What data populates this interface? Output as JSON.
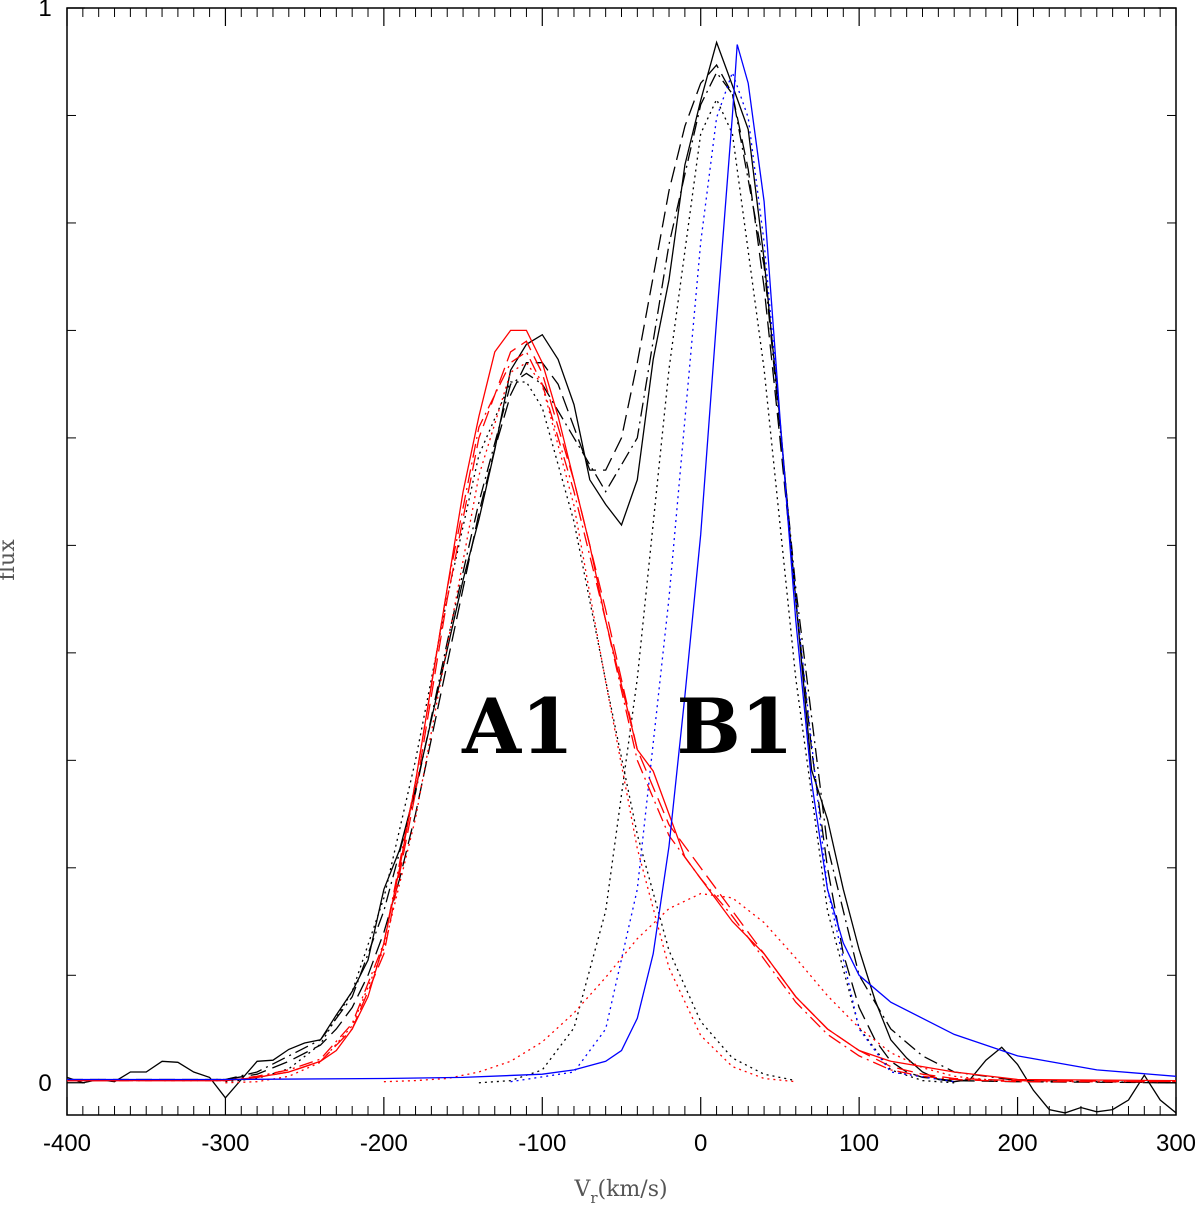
{
  "chart_data": {
    "type": "line",
    "xlabel": {
      "base": "V",
      "subscript": "r",
      "rest": "(km/s)"
    },
    "ylabel": "flux",
    "xlim": [
      -400,
      300
    ],
    "ylim": [
      -0.03,
      1
    ],
    "xticks": [
      -400,
      -300,
      -200,
      -100,
      0,
      100,
      200,
      300
    ],
    "yticks": [
      0,
      1
    ],
    "xminorticks": [
      -390,
      -380,
      -370,
      -360,
      -350,
      -340,
      -330,
      -320,
      -310,
      -290,
      -280,
      -270,
      -260,
      -250,
      -240,
      -230,
      -220,
      -210,
      -190,
      -180,
      -170,
      -160,
      -150,
      -140,
      -130,
      -120,
      -110,
      -90,
      -80,
      -70,
      -60,
      -50,
      -40,
      -30,
      -20,
      -10,
      10,
      20,
      30,
      40,
      50,
      60,
      70,
      80,
      90,
      110,
      120,
      130,
      140,
      150,
      160,
      170,
      180,
      190,
      210,
      220,
      230,
      240,
      250,
      260,
      270,
      280,
      290
    ],
    "yminorticks": [
      0.1,
      0.2,
      0.3,
      0.4,
      0.5,
      0.6,
      0.7,
      0.8,
      0.9
    ],
    "annotations": [
      "A1",
      "B1"
    ],
    "series": [
      {
        "color": "#000000",
        "style": "solid",
        "x": [
          -400,
          -390,
          -380,
          -370,
          -360,
          -350,
          -340,
          -330,
          -320,
          -310,
          -300,
          -290,
          -280,
          -270,
          -260,
          -250,
          -240,
          -230,
          -220,
          -210,
          -200,
          -190,
          -180,
          -170,
          -160,
          -150,
          -140,
          -130,
          -120,
          -110,
          -100,
          -90,
          -80,
          -70,
          -60,
          -50,
          -40,
          -30,
          -20,
          -10,
          0,
          10,
          20,
          30,
          40,
          50,
          60,
          70,
          80,
          90,
          100,
          110,
          120,
          130,
          140,
          150,
          160,
          170,
          180,
          190,
          200,
          210,
          220,
          230,
          240,
          250,
          260,
          270,
          280,
          290,
          300
        ],
        "values": [
          0.005,
          0,
          0.003,
          0.001,
          0.01,
          0.01,
          0.02,
          0.019,
          0.01,
          0.005,
          -0.014,
          0.003,
          0.02,
          0.021,
          0.031,
          0.037,
          0.04,
          0.063,
          0.085,
          0.114,
          0.18,
          0.217,
          0.273,
          0.338,
          0.403,
          0.468,
          0.524,
          0.589,
          0.663,
          0.687,
          0.696,
          0.673,
          0.631,
          0.561,
          0.538,
          0.519,
          0.561,
          0.673,
          0.747,
          0.854,
          0.914,
          0.968,
          0.928,
          0.887,
          0.766,
          0.617,
          0.449,
          0.291,
          0.245,
          0.18,
          0.124,
          0.077,
          0.04,
          0.023,
          0.01,
          0.003,
          0.001,
          0.003,
          0.021,
          0.033,
          0.017,
          -0.007,
          -0.025,
          -0.028,
          -0.023,
          -0.027,
          -0.025,
          -0.016,
          0.007,
          -0.016,
          -0.028
        ]
      },
      {
        "color": "#000000",
        "style": "dashed",
        "x": [
          -400,
          -300,
          -280,
          -260,
          -240,
          -230,
          -220,
          -210,
          -200,
          -190,
          -180,
          -170,
          -160,
          -150,
          -140,
          -130,
          -120,
          -110,
          -100,
          -90,
          -80,
          -70,
          -60,
          -50,
          -40,
          -30,
          -20,
          -10,
          0,
          10,
          20,
          30,
          40,
          50,
          60,
          70,
          80,
          90,
          100,
          110,
          120,
          130,
          140,
          160,
          200,
          300
        ],
        "values": [
          0.003,
          0.003,
          0.008,
          0.02,
          0.035,
          0.05,
          0.07,
          0.1,
          0.14,
          0.19,
          0.25,
          0.32,
          0.39,
          0.46,
          0.53,
          0.59,
          0.64,
          0.67,
          0.67,
          0.65,
          0.61,
          0.57,
          0.57,
          0.6,
          0.67,
          0.75,
          0.83,
          0.89,
          0.93,
          0.947,
          0.92,
          0.85,
          0.74,
          0.6,
          0.45,
          0.31,
          0.2,
          0.12,
          0.07,
          0.04,
          0.02,
          0.01,
          0.005,
          0.002,
          0.001,
          0
        ]
      },
      {
        "color": "#000000",
        "style": "dashdot",
        "x": [
          -400,
          -300,
          -280,
          -260,
          -240,
          -220,
          -200,
          -180,
          -160,
          -140,
          -120,
          -110,
          -100,
          -80,
          -60,
          -40,
          -20,
          0,
          10,
          20,
          40,
          60,
          80,
          100,
          120,
          140,
          160,
          200,
          300
        ],
        "values": [
          0.002,
          0.003,
          0.01,
          0.025,
          0.04,
          0.08,
          0.16,
          0.27,
          0.41,
          0.54,
          0.65,
          0.66,
          0.65,
          0.6,
          0.55,
          0.6,
          0.78,
          0.91,
          0.94,
          0.92,
          0.76,
          0.46,
          0.22,
          0.1,
          0.05,
          0.025,
          0.01,
          0.002,
          0
        ]
      },
      {
        "color": "#000000",
        "style": "dotted",
        "x": [
          -300,
          -280,
          -260,
          -240,
          -220,
          -200,
          -180,
          -160,
          -140,
          -120,
          -110,
          -100,
          -80,
          -60,
          -40,
          -20,
          0,
          20,
          40,
          60
        ],
        "values": [
          0.001,
          0.004,
          0.013,
          0.036,
          0.085,
          0.172,
          0.3,
          0.451,
          0.584,
          0.652,
          0.652,
          0.628,
          0.522,
          0.374,
          0.231,
          0.123,
          0.057,
          0.023,
          0.008,
          0.002
        ]
      },
      {
        "color": "#000000",
        "style": "dotted",
        "x": [
          -140,
          -120,
          -100,
          -80,
          -60,
          -40,
          -20,
          0,
          10,
          20,
          40,
          60,
          80,
          100,
          120,
          140,
          160
        ],
        "values": [
          0,
          0.002,
          0.012,
          0.051,
          0.16,
          0.376,
          0.664,
          0.883,
          0.915,
          0.883,
          0.664,
          0.376,
          0.16,
          0.051,
          0.012,
          0.002,
          0
        ]
      },
      {
        "color": "#ff0000",
        "style": "solid",
        "x": [
          -400,
          -300,
          -280,
          -260,
          -240,
          -230,
          -220,
          -210,
          -200,
          -190,
          -180,
          -170,
          -160,
          -150,
          -140,
          -130,
          -120,
          -110,
          -100,
          -90,
          -80,
          -70,
          -60,
          -50,
          -40,
          -30,
          -20,
          -10,
          0,
          20,
          40,
          60,
          80,
          100,
          120,
          140,
          160,
          200,
          300
        ],
        "values": [
          0.002,
          0.002,
          0.005,
          0.01,
          0.02,
          0.03,
          0.05,
          0.08,
          0.13,
          0.2,
          0.28,
          0.37,
          0.46,
          0.55,
          0.62,
          0.68,
          0.7,
          0.7,
          0.67,
          0.62,
          0.56,
          0.5,
          0.43,
          0.37,
          0.31,
          0.29,
          0.25,
          0.21,
          0.19,
          0.15,
          0.12,
          0.08,
          0.05,
          0.03,
          0.02,
          0.015,
          0.01,
          0.003,
          0.002
        ]
      },
      {
        "color": "#ff0000",
        "style": "dashed",
        "x": [
          -400,
          -300,
          -280,
          -260,
          -240,
          -220,
          -200,
          -180,
          -160,
          -140,
          -120,
          -110,
          -100,
          -80,
          -60,
          -40,
          -20,
          0,
          20,
          40,
          60,
          80,
          100,
          120,
          140,
          160,
          200,
          300
        ],
        "values": [
          0.002,
          0.002,
          0.005,
          0.01,
          0.02,
          0.05,
          0.12,
          0.27,
          0.45,
          0.6,
          0.68,
          0.69,
          0.66,
          0.56,
          0.44,
          0.31,
          0.24,
          0.2,
          0.16,
          0.12,
          0.08,
          0.05,
          0.03,
          0.015,
          0.008,
          0.004,
          0.002,
          0.001
        ]
      },
      {
        "color": "#ff0000",
        "style": "dashdot",
        "x": [
          -400,
          -300,
          -280,
          -260,
          -240,
          -220,
          -200,
          -180,
          -160,
          -140,
          -120,
          -110,
          -100,
          -80,
          -60,
          -40,
          -20,
          0,
          20,
          40,
          60,
          80,
          100,
          120,
          140,
          160,
          200,
          300
        ],
        "values": [
          0.002,
          0.002,
          0.006,
          0.012,
          0.022,
          0.055,
          0.13,
          0.28,
          0.46,
          0.61,
          0.67,
          0.68,
          0.65,
          0.55,
          0.43,
          0.3,
          0.23,
          0.19,
          0.155,
          0.115,
          0.075,
          0.045,
          0.025,
          0.012,
          0.006,
          0.003,
          0.001,
          0.001
        ]
      },
      {
        "color": "#ff0000",
        "style": "dotted",
        "x": [
          -300,
          -280,
          -260,
          -240,
          -220,
          -200,
          -180,
          -160,
          -140,
          -120,
          -110,
          -100,
          -80,
          -60,
          -40,
          -20,
          0,
          20,
          40,
          60
        ],
        "values": [
          0,
          0.001,
          0.006,
          0.019,
          0.053,
          0.125,
          0.246,
          0.406,
          0.565,
          0.661,
          0.67,
          0.649,
          0.537,
          0.373,
          0.218,
          0.107,
          0.044,
          0.015,
          0.004,
          0.001
        ]
      },
      {
        "color": "#ff0000",
        "style": "dotted",
        "x": [
          -200,
          -180,
          -160,
          -140,
          -120,
          -100,
          -80,
          -60,
          -40,
          -20,
          0,
          20,
          40,
          60,
          80,
          100,
          120,
          140,
          160,
          180,
          200
        ],
        "values": [
          0.001,
          0.002,
          0.004,
          0.01,
          0.02,
          0.038,
          0.065,
          0.098,
          0.134,
          0.162,
          0.176,
          0.172,
          0.149,
          0.116,
          0.081,
          0.051,
          0.028,
          0.014,
          0.006,
          0.003,
          0.001
        ]
      },
      {
        "color": "#0000ff",
        "style": "solid",
        "x": [
          -400,
          -300,
          -200,
          -150,
          -100,
          -80,
          -60,
          -50,
          -40,
          -30,
          -20,
          -10,
          0,
          10,
          20,
          23,
          30,
          40,
          50,
          60,
          70,
          80,
          90,
          100,
          120,
          140,
          160,
          200,
          250,
          300
        ],
        "values": [
          0.003,
          0.003,
          0.004,
          0.005,
          0.008,
          0.012,
          0.02,
          0.03,
          0.06,
          0.12,
          0.22,
          0.36,
          0.51,
          0.71,
          0.9,
          0.966,
          0.93,
          0.82,
          0.62,
          0.43,
          0.28,
          0.18,
          0.13,
          0.1,
          0.075,
          0.06,
          0.045,
          0.025,
          0.012,
          0.006
        ]
      },
      {
        "color": "#0000ff",
        "style": "dotted",
        "x": [
          -120,
          -80,
          -60,
          -40,
          -20,
          0,
          10,
          20,
          30,
          40,
          60,
          80,
          100,
          120,
          160
        ],
        "values": [
          0.001,
          0.01,
          0.05,
          0.18,
          0.451,
          0.782,
          0.898,
          0.94,
          0.898,
          0.782,
          0.451,
          0.18,
          0.05,
          0.01,
          0.001
        ]
      }
    ]
  }
}
